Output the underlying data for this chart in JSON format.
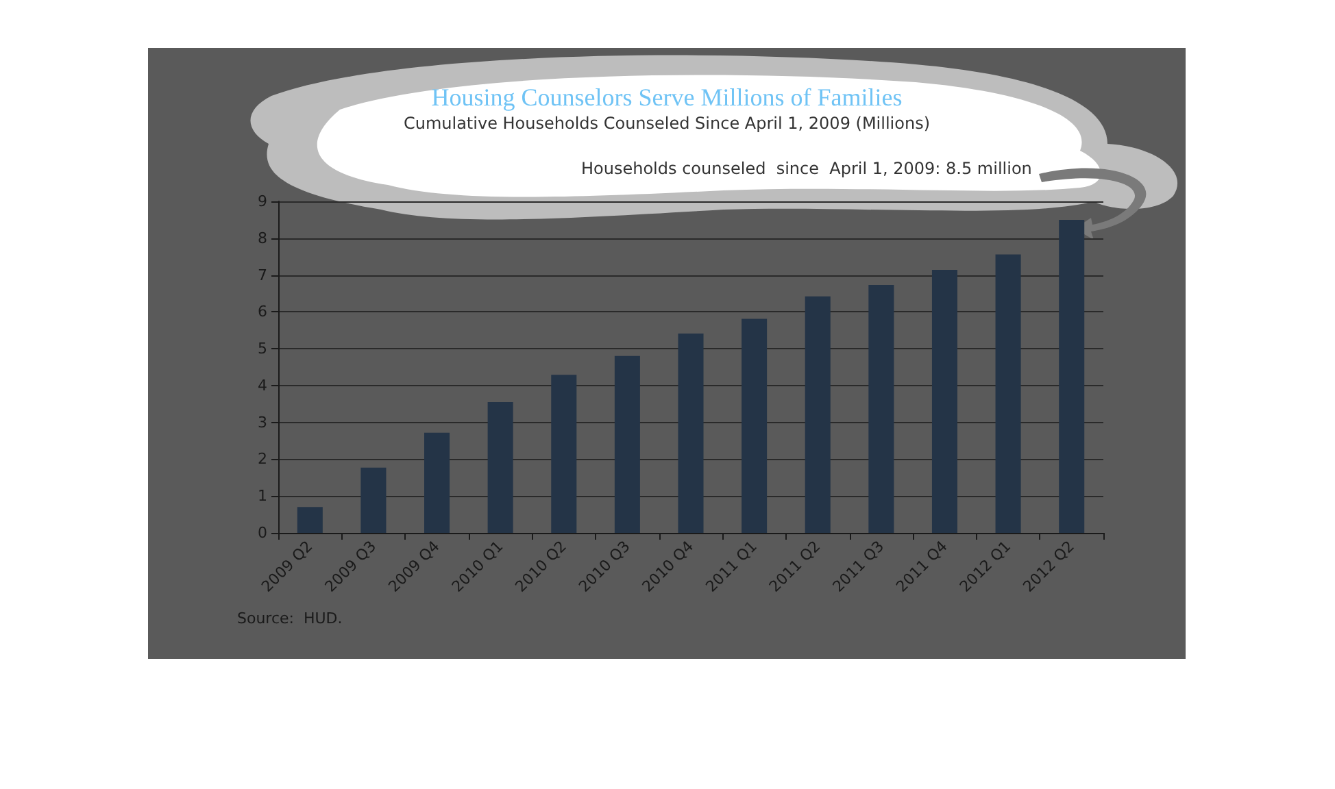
{
  "chart_data": {
    "type": "bar",
    "title": "Housing Counselors Serve Millions of Families",
    "subtitle": "Cumulative Households Counseled Since April 1, 2009 (Millions)",
    "categories": [
      "2009 Q2",
      "2009 Q3",
      "2009 Q4",
      "2010 Q1",
      "2010 Q2",
      "2010 Q3",
      "2010 Q4",
      "2011 Q1",
      "2011 Q2",
      "2011 Q3",
      "2011 Q4",
      "2012 Q1",
      "2012 Q2"
    ],
    "values": [
      0.7,
      1.77,
      2.72,
      3.55,
      4.29,
      4.8,
      5.41,
      5.81,
      6.42,
      6.73,
      7.14,
      7.56,
      8.5
    ],
    "color": "#243447",
    "ylim": [
      0,
      9
    ],
    "yticks": [
      0,
      1,
      2,
      3,
      4,
      5,
      6,
      7,
      8,
      9
    ],
    "grid": "y",
    "annotations": [
      "Households counseled  since  April 1, 2009: 8.5 million",
      "Source:  HUD."
    ]
  }
}
